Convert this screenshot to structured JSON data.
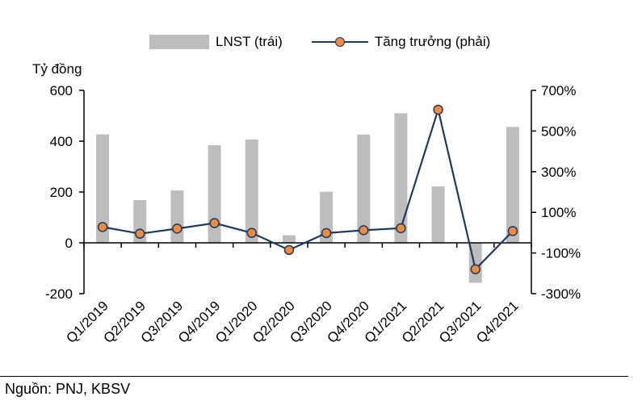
{
  "chart_data": {
    "type": "bar",
    "y_unit_label": "Tỷ đồng",
    "categories": [
      "Q1/2019",
      "Q2/2019",
      "Q3/2019",
      "Q4/2019",
      "Q1/2020",
      "Q2/2020",
      "Q3/2020",
      "Q4/2020",
      "Q1/2021",
      "Q2/2021",
      "Q3/2021",
      "Q4/2021"
    ],
    "series": [
      {
        "name": "LNST (trái)",
        "type": "bar",
        "axis": "left",
        "color": "#bdbdbd",
        "values": [
          427,
          168,
          206,
          384,
          407,
          30,
          201,
          426,
          510,
          222,
          -157,
          456
        ]
      },
      {
        "name": "Tăng trưởng (phải)",
        "type": "line",
        "axis": "right",
        "color": "#1f3a5f",
        "marker_color": "#f08a3c",
        "values": [
          28,
          -5,
          20,
          47,
          -1,
          -85,
          -2,
          12,
          22,
          605,
          -180,
          8
        ]
      }
    ],
    "y_left": {
      "min": -200,
      "max": 600,
      "ticks": [
        -200,
        0,
        200,
        400,
        600
      ],
      "tick_labels": [
        "-200",
        "0",
        "200",
        "400",
        "600"
      ]
    },
    "y_right": {
      "min": -300,
      "max": 700,
      "ticks": [
        -300,
        -100,
        100,
        300,
        500,
        700
      ],
      "tick_labels": [
        "-300%",
        "-100%",
        "100%",
        "300%",
        "500%",
        "700%"
      ]
    },
    "legend_position": "top",
    "grid": false
  },
  "source": "Nguồn: PNJ, KBSV"
}
